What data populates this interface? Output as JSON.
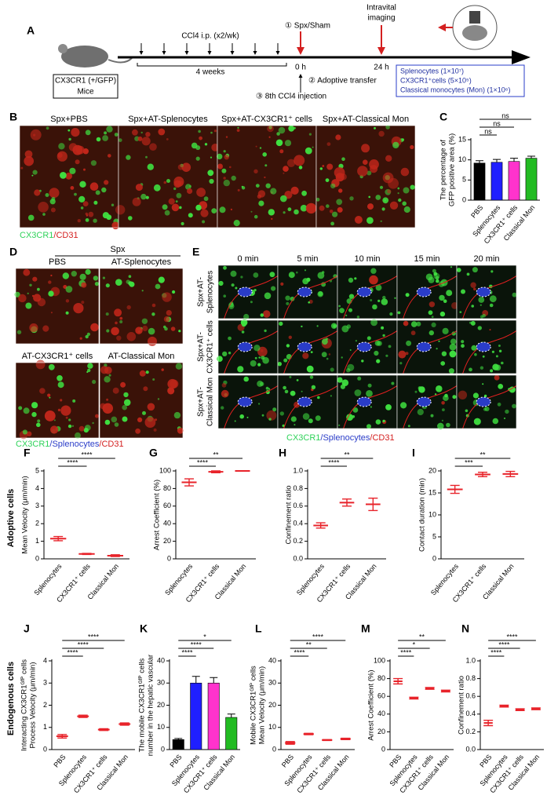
{
  "figure": {
    "a": {
      "letter": "A",
      "mouse_box": [
        "CX3CR1 (+/GFP)",
        "Mice"
      ],
      "ccl4": "CCl4 i.p. (x2/wk)",
      "weeks": "4 weeks",
      "spx": "① Spx/Sham",
      "zero": "0 h",
      "transfer": "② Adoptive transfer",
      "injection": "③ 8th CCl4 injection",
      "imaging": [
        "Intravital",
        "imaging"
      ],
      "end": "24 h",
      "cells": [
        "Splenocytes (1×10⁷)",
        "CX3CR1⁺cells (5×10⁵)",
        "Classical monocytes (Mon) (1×10⁶)"
      ]
    },
    "b": {
      "letter": "B",
      "labels": [
        "Spx+PBS",
        "Spx+AT-Splenocytes",
        "Spx+AT-CX3CR1⁺ cells",
        "Spx+AT-Classical Mon"
      ],
      "legend": [
        {
          "text": "CX3CR1",
          "color": "#2fd35a"
        },
        {
          "text": "/CD31",
          "color": "#d42020"
        }
      ]
    },
    "d": {
      "letter": "D",
      "group": "Spx",
      "labels": [
        "PBS",
        "AT-Splenocytes",
        "AT-CX3CR1⁺ cells",
        "AT-Classical Mon"
      ],
      "legend": [
        {
          "text": "CX3CR1",
          "color": "#2fd35a"
        },
        {
          "text": "/Splenocytes",
          "color": "#2a3cc8"
        },
        {
          "text": "/CD31",
          "color": "#d42020"
        }
      ]
    },
    "e": {
      "letter": "E",
      "times": [
        "0 min",
        "5 min",
        "10 min",
        "15 min",
        "20 min"
      ],
      "rows": [
        [
          "Spx+AT-",
          "Splenocytes"
        ],
        [
          "Spx+AT-",
          "CX3CR1⁺ cells"
        ],
        [
          "Spx+AT-",
          "Classical Mon"
        ]
      ],
      "legend": [
        {
          "text": "CX3CR1",
          "color": "#2fd35a"
        },
        {
          "text": "/Splenocytes",
          "color": "#2a3cc8"
        },
        {
          "text": "/CD31",
          "color": "#d42020"
        }
      ]
    },
    "groups": [
      "Adoptive cells",
      "Endogenous cells"
    ]
  },
  "chart_data": [
    {
      "type": "bar",
      "letter": "C",
      "categories": [
        "PBS",
        "Splenocytes",
        "CX3CR1⁺ cells",
        "Classical Mon"
      ],
      "values": [
        9.2,
        9.4,
        9.6,
        10.4
      ],
      "errors": [
        0.6,
        0.7,
        0.8,
        0.5
      ],
      "colors": [
        "#000000",
        "#1f1fff",
        "#ff33cc",
        "#22bb22"
      ],
      "ylim": [
        0,
        15
      ],
      "yticks": [
        0,
        5,
        10,
        15
      ],
      "ylabel": [
        "The percentage of",
        "GFP positive area (%)"
      ],
      "significance": [
        "ns",
        "ns",
        "ns"
      ]
    },
    {
      "type": "dot",
      "letter": "F",
      "categories": [
        "Splenocytes",
        "CX3CR1⁺ cells",
        "Classical Mon"
      ],
      "values": [
        1.15,
        0.28,
        0.18
      ],
      "errors": [
        0.12,
        0.03,
        0.05
      ],
      "color": "#e8232a",
      "ylim": [
        0,
        5
      ],
      "yticks": [
        0,
        1,
        2,
        3,
        4,
        5
      ],
      "ylabel": [
        "Mean Velocity (μm/min)"
      ],
      "significance": [
        "****",
        "****"
      ]
    },
    {
      "type": "dot",
      "letter": "G",
      "categories": [
        "Splenocytes",
        "CX3CR1⁺ cells",
        "Classical Mon"
      ],
      "values": [
        87,
        99,
        100
      ],
      "errors": [
        4,
        1,
        0
      ],
      "color": "#e8232a",
      "ylim": [
        0,
        100
      ],
      "yticks": [
        0,
        20,
        40,
        60,
        80,
        100
      ],
      "ylabel": [
        "Arrest Coefficient (%)"
      ],
      "significance": [
        "****",
        "**"
      ]
    },
    {
      "type": "dot",
      "letter": "H",
      "categories": [
        "Splenocytes",
        "CX3CR1⁺ cells",
        "Classical Mon"
      ],
      "values": [
        0.38,
        0.64,
        0.62
      ],
      "errors": [
        0.03,
        0.04,
        0.07
      ],
      "color": "#e8232a",
      "ylim": [
        0,
        1
      ],
      "yticks": [
        {
          "value": 0,
          "label": "0.0"
        },
        0.2,
        0.4,
        0.6,
        0.8,
        {
          "value": 1,
          "label": "1.0"
        }
      ],
      "ylabel": [
        "Confinement ratio"
      ],
      "significance": [
        "****",
        "**"
      ]
    },
    {
      "type": "dot",
      "letter": "I",
      "categories": [
        "Splenocytes",
        "CX3CR1⁺ cells",
        "Classical Mon"
      ],
      "values": [
        15.8,
        19.2,
        19.3
      ],
      "errors": [
        0.9,
        0.5,
        0.6
      ],
      "color": "#e8232a",
      "ylim": [
        0,
        20
      ],
      "yticks": [
        0,
        5,
        10,
        15,
        20
      ],
      "ylabel": [
        "Contact duration (min)"
      ],
      "significance": [
        "***",
        "**"
      ]
    },
    {
      "type": "dot",
      "letter": "J",
      "categories": [
        "PBS",
        "Splenocytes",
        "CX3CR1⁺ cells",
        "Classical Mon"
      ],
      "values": [
        0.6,
        1.5,
        0.9,
        1.15
      ],
      "errors": [
        0.08,
        0.05,
        0.04,
        0.05
      ],
      "color": "#e8232a",
      "ylim": [
        0,
        4
      ],
      "yticks": [
        0,
        1,
        2,
        3,
        4
      ],
      "ylabel": [
        "Interacting CX3CR1ᴳᶠᴾ cells",
        "Process Velocity (μm/min)"
      ],
      "significance": [
        "****",
        "****",
        "****"
      ]
    },
    {
      "type": "bar",
      "letter": "K",
      "categories": [
        "PBS",
        "Splenocytes",
        "CX3CR1⁺ cells",
        "Classical Mon"
      ],
      "values": [
        4.5,
        30,
        30,
        14.5
      ],
      "errors": [
        0.5,
        3,
        2.5,
        1.5
      ],
      "colors": [
        "#000000",
        "#1f1fff",
        "#ff33cc",
        "#22bb22"
      ],
      "ylim": [
        0,
        40
      ],
      "yticks": [
        0,
        10,
        20,
        30,
        40
      ],
      "ylabel": [
        "The mobile CX3CR1ᴳᶠᴾ cells",
        "number in the hepatic vascular"
      ],
      "significance": [
        "****",
        "****",
        "*"
      ]
    },
    {
      "type": "dot",
      "letter": "L",
      "categories": [
        "PBS",
        "Splenocytes",
        "CX3CR1⁺ cells",
        "Classical Mon"
      ],
      "values": [
        3,
        7,
        4.3,
        4.8
      ],
      "errors": [
        0.6,
        0.3,
        0.2,
        0.3
      ],
      "color": "#e8232a",
      "ylim": [
        0,
        40
      ],
      "yticks": [
        0,
        10,
        20,
        30,
        40
      ],
      "ylabel": [
        "Mobile CX3CR1ᴳᶠᴾ cells",
        "Mean Velocity (μm/min)"
      ],
      "significance": [
        "****",
        "**",
        "****"
      ]
    },
    {
      "type": "dot",
      "letter": "M",
      "categories": [
        "PBS",
        "Splenocytes",
        "CX3CR1⁺ cells",
        "Classical Mon"
      ],
      "values": [
        77,
        58,
        69,
        66
      ],
      "errors": [
        3,
        1,
        1,
        1
      ],
      "color": "#e8232a",
      "ylim": [
        0,
        100
      ],
      "yticks": [
        0,
        20,
        40,
        60,
        80,
        100
      ],
      "ylabel": [
        "Arrest Coefficient (%)"
      ],
      "significance": [
        "****",
        "*",
        "**"
      ]
    },
    {
      "type": "dot",
      "letter": "N",
      "categories": [
        "PBS",
        "Splenocytes",
        "CX3CR1⁺ cells",
        "Classical Mon"
      ],
      "values": [
        0.3,
        0.49,
        0.45,
        0.46
      ],
      "errors": [
        0.03,
        0.01,
        0.01,
        0.01
      ],
      "color": "#e8232a",
      "ylim": [
        0,
        1
      ],
      "yticks": [
        {
          "value": 0,
          "label": "0.0"
        },
        0.2,
        0.4,
        0.6,
        0.8,
        {
          "value": 1,
          "label": "1.0"
        }
      ],
      "ylabel": [
        "Confinement ratio"
      ],
      "significance": [
        "****",
        "****",
        "****"
      ]
    }
  ]
}
